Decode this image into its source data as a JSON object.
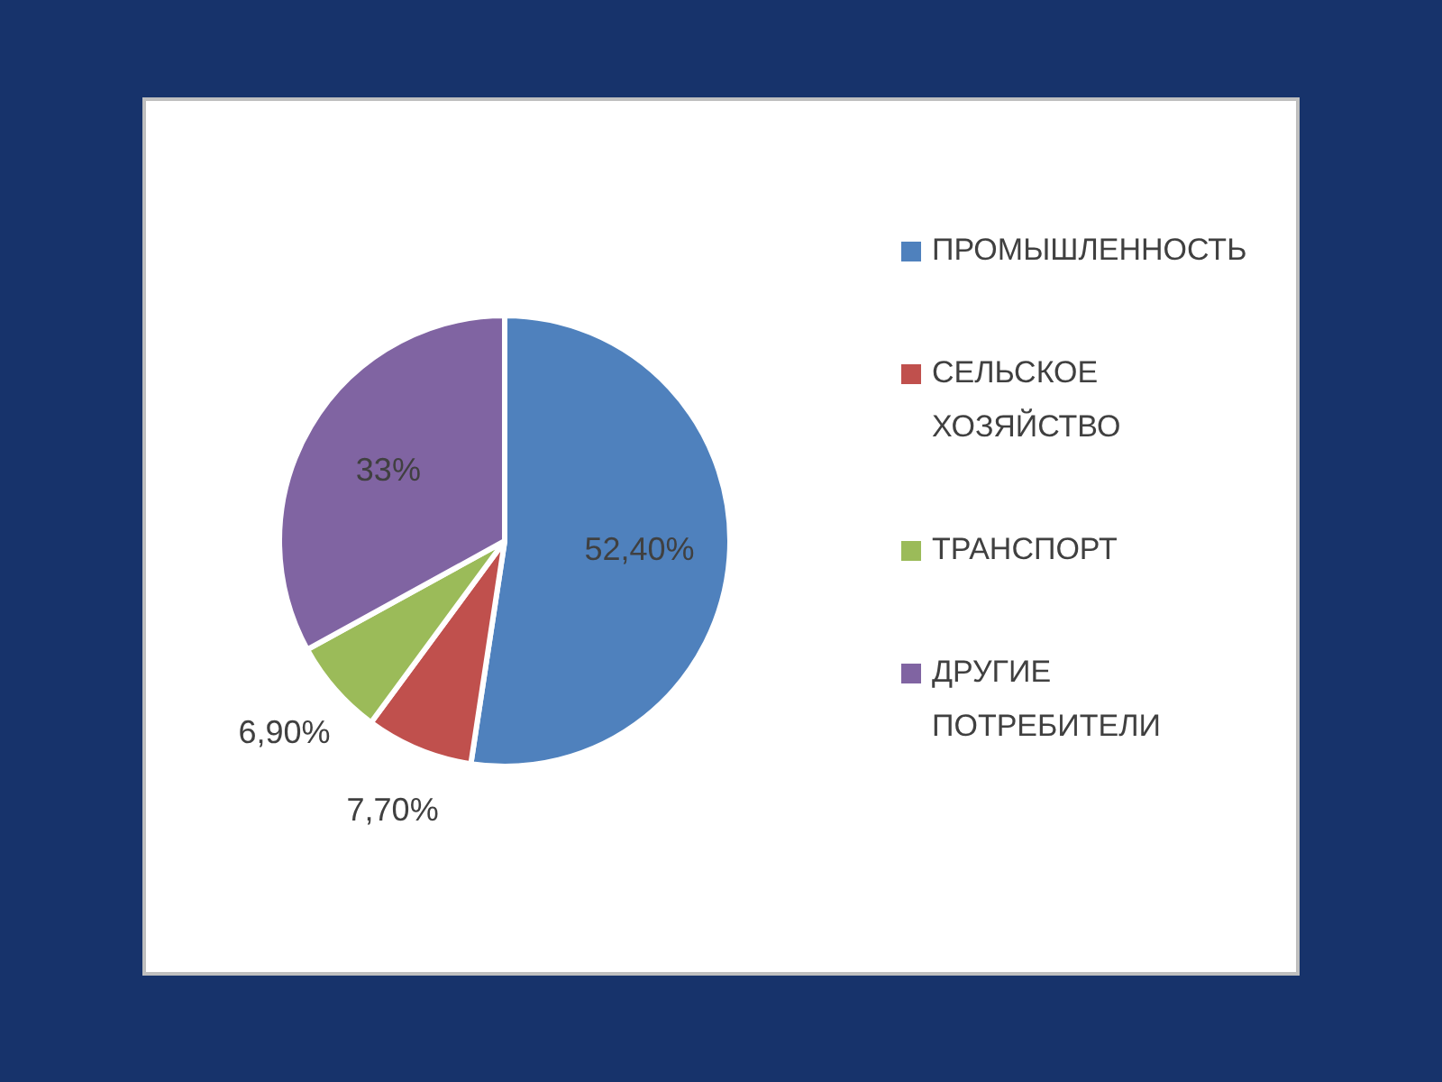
{
  "chart_data": {
    "type": "pie",
    "categories": [
      "ПРОМЫШЛЕННОСТЬ",
      "СЕЛЬСКОЕ ХОЗЯЙСТВО",
      "ТРАНСПОРТ",
      "ДРУГИЕ ПОТРЕБИТЕЛИ"
    ],
    "values": [
      52.4,
      7.7,
      6.9,
      33
    ],
    "colors": [
      "#4f81bd",
      "#c0504d",
      "#9bbb59",
      "#8064a2"
    ],
    "value_labels": [
      "52,40%",
      "7,70%",
      "6,90%",
      "33%"
    ],
    "legend": "right"
  }
}
